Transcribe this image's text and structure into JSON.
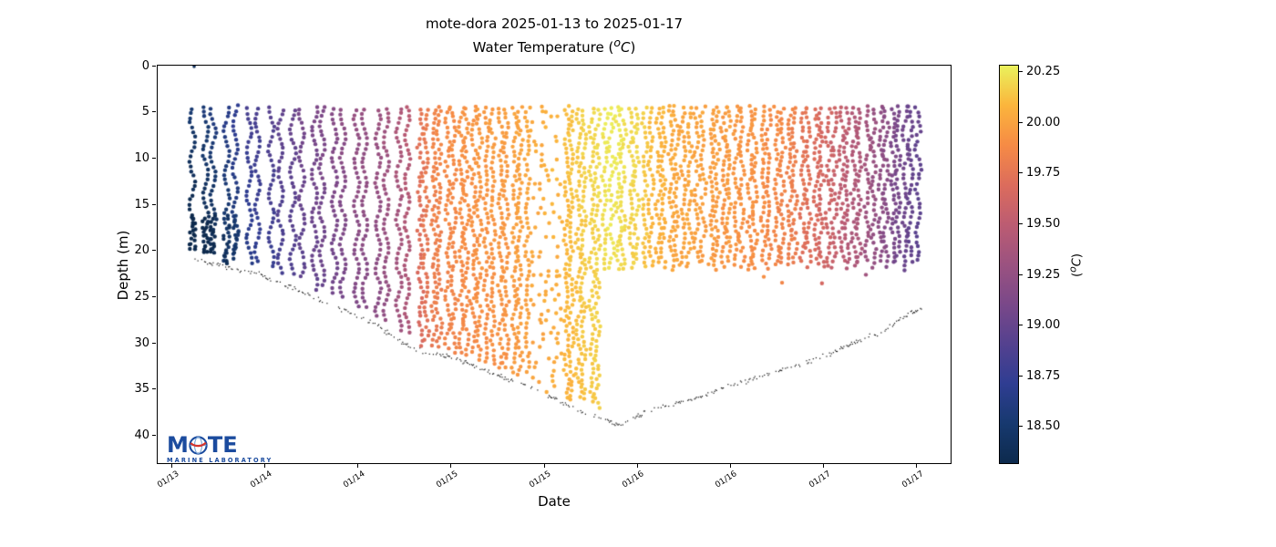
{
  "chart_data": {
    "type": "scatter",
    "title": "mote-dora 2025-01-13 to 2025-01-17",
    "subtitle": "Water Temperature (°C)",
    "subtitle_parts": {
      "prefix": "Water Temperature (",
      "sup": "o",
      "unit": "C",
      "suffix": ")"
    },
    "xlabel": "Date",
    "ylabel": "Depth (m)",
    "x_ticks": [
      {
        "day": 13.5,
        "label": "01/13"
      },
      {
        "day": 14.0,
        "label": "01/14"
      },
      {
        "day": 14.5,
        "label": "01/14"
      },
      {
        "day": 15.0,
        "label": "01/15"
      },
      {
        "day": 15.5,
        "label": "01/15"
      },
      {
        "day": 16.0,
        "label": "01/16"
      },
      {
        "day": 16.5,
        "label": "01/16"
      },
      {
        "day": 17.0,
        "label": "01/17"
      },
      {
        "day": 17.5,
        "label": "01/17"
      }
    ],
    "xlim_days": [
      13.424,
      17.683
    ],
    "y_ticks": [
      0,
      5,
      10,
      15,
      20,
      25,
      30,
      35,
      40
    ],
    "ylim_m": [
      0,
      43
    ],
    "grid": false,
    "legend": "none",
    "colorbar": {
      "label_parts": {
        "prefix": "(",
        "sup": "o",
        "unit": "C",
        "suffix": ")"
      },
      "ticks": [
        "20.25",
        "20.00",
        "19.75",
        "19.50",
        "19.25",
        "19.00",
        "18.75",
        "18.50"
      ],
      "vmin": 18.32,
      "vmax": 20.28,
      "colormap_stops": [
        [
          0.0,
          "#0d2a4d"
        ],
        [
          0.1,
          "#17396f"
        ],
        [
          0.2,
          "#2f3d92"
        ],
        [
          0.3,
          "#54418f"
        ],
        [
          0.4,
          "#7a4889"
        ],
        [
          0.5,
          "#9b5280"
        ],
        [
          0.6,
          "#bc5c72"
        ],
        [
          0.7,
          "#dc6c5c"
        ],
        [
          0.8,
          "#f68b45"
        ],
        [
          0.9,
          "#fbb53c"
        ],
        [
          1.0,
          "#eaf25c"
        ]
      ]
    },
    "series": {
      "description": "Glider yo-profiles of water temperature (colored dots) plus echosounder seafloor trace (black speckle line)",
      "data_start_day": 13.61,
      "data_end_day": 17.51,
      "profile_top_depth_m": 4.6,
      "deep_profile_end_day": 15.824,
      "shallow_profile_max_depth_m": 22.3,
      "dense_profile_start_day": 14.82,
      "sparse_windows": [
        [
          15.42,
          15.59,
          0.3
        ]
      ],
      "surface_outlier": {
        "day": 13.62,
        "depth_m": 0.1,
        "temp_c": 18.4
      },
      "water_temp_by_day": [
        [
          13.61,
          18.38
        ],
        [
          13.75,
          18.5
        ],
        [
          13.9,
          18.72
        ],
        [
          14.05,
          18.87
        ],
        [
          14.24,
          19.05
        ],
        [
          14.44,
          19.18
        ],
        [
          14.64,
          19.3
        ],
        [
          14.78,
          19.45
        ],
        [
          14.84,
          19.75
        ],
        [
          14.93,
          19.85
        ],
        [
          15.12,
          19.92
        ],
        [
          15.32,
          19.98
        ],
        [
          15.52,
          20.05
        ],
        [
          15.71,
          20.15
        ],
        [
          15.87,
          20.24
        ],
        [
          16.0,
          20.17
        ],
        [
          16.15,
          20.05
        ],
        [
          16.35,
          19.98
        ],
        [
          16.59,
          19.93
        ],
        [
          16.79,
          19.85
        ],
        [
          16.96,
          19.68
        ],
        [
          17.11,
          19.5
        ],
        [
          17.25,
          19.32
        ],
        [
          17.37,
          19.13
        ],
        [
          17.47,
          19.0
        ],
        [
          17.51,
          18.95
        ]
      ],
      "vertical_temp_gradient_per_m": [
        [
          13.61,
          -0.016
        ],
        [
          14.05,
          -0.009
        ],
        [
          14.82,
          -0.003
        ],
        [
          15.5,
          -0.0015
        ],
        [
          16.5,
          -0.002
        ],
        [
          17.51,
          -0.003
        ]
      ],
      "seafloor_depth_by_day": [
        [
          13.63,
          20.8
        ],
        [
          13.85,
          22.0
        ],
        [
          14.05,
          23.3
        ],
        [
          14.24,
          24.7
        ],
        [
          14.44,
          26.7
        ],
        [
          14.64,
          28.6
        ],
        [
          14.78,
          30.4
        ],
        [
          14.93,
          31.4
        ],
        [
          15.07,
          32.1
        ],
        [
          15.22,
          33.1
        ],
        [
          15.37,
          34.3
        ],
        [
          15.52,
          35.8
        ],
        [
          15.66,
          37.1
        ],
        [
          15.81,
          38.1
        ],
        [
          15.91,
          38.8
        ],
        [
          16.0,
          38.1
        ],
        [
          16.15,
          36.8
        ],
        [
          16.3,
          35.9
        ],
        [
          16.44,
          35.1
        ],
        [
          16.59,
          34.3
        ],
        [
          16.74,
          33.0
        ],
        [
          16.89,
          32.1
        ],
        [
          17.03,
          31.4
        ],
        [
          17.18,
          29.9
        ],
        [
          17.33,
          28.4
        ],
        [
          17.45,
          26.9
        ],
        [
          17.52,
          26.4
        ]
      ]
    }
  },
  "logo": {
    "m": "M",
    "te": "TE",
    "tagline": "MARINE LABORATORY",
    "blue": "#1b4b9e",
    "red": "#d6342c",
    "globe_line": "#7aa7d8"
  }
}
